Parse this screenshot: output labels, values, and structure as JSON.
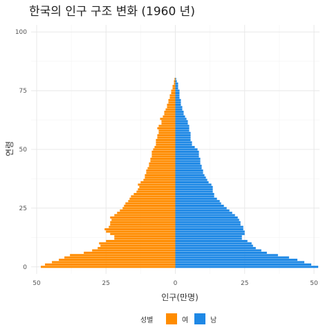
{
  "chart_data": {
    "type": "bar",
    "orientation": "horizontal",
    "title": "한국의 인구 구조 변화 (1960 년)",
    "xlabel": "인구(만명)",
    "ylabel": "연령",
    "xlim": [
      -52,
      52
    ],
    "ylim": [
      -3,
      103
    ],
    "xticks": [
      -50,
      -25,
      0,
      25,
      50
    ],
    "xtick_labels": [
      "50",
      "25",
      "0",
      "25",
      "50"
    ],
    "yticks": [
      0,
      25,
      50,
      75,
      100
    ],
    "ytick_labels": [
      "0",
      "25",
      "50",
      "75",
      "100"
    ],
    "grid": true,
    "legend": {
      "title": "성별",
      "position": "bottom",
      "items": [
        {
          "label": "여",
          "color": "#FF8C00"
        },
        {
          "label": "남",
          "color": "#1E88E5"
        }
      ]
    },
    "ages": [
      0,
      1,
      2,
      3,
      4,
      5,
      6,
      7,
      8,
      9,
      10,
      11,
      12,
      13,
      14,
      15,
      16,
      17,
      18,
      19,
      20,
      21,
      22,
      23,
      24,
      25,
      26,
      27,
      28,
      29,
      30,
      31,
      32,
      33,
      34,
      35,
      36,
      37,
      38,
      39,
      40,
      41,
      42,
      43,
      44,
      45,
      46,
      47,
      48,
      49,
      50,
      51,
      52,
      53,
      54,
      55,
      56,
      57,
      58,
      59,
      60,
      61,
      62,
      63,
      64,
      65,
      66,
      67,
      68,
      69,
      70,
      71,
      72,
      73,
      74,
      75,
      76,
      77,
      78,
      79,
      80
    ],
    "series": [
      {
        "name": "여",
        "color": "#FF8C00",
        "values": [
          48.5,
          47.0,
          44.5,
          42.0,
          40.0,
          38.0,
          33.0,
          30.0,
          28.0,
          27.0,
          27.5,
          25.0,
          22.0,
          22.0,
          23.5,
          25.0,
          25.5,
          24.0,
          23.5,
          23.5,
          23.0,
          23.5,
          22.0,
          21.0,
          20.0,
          19.0,
          18.5,
          18.0,
          17.0,
          16.5,
          16.0,
          15.0,
          14.0,
          13.5,
          13.0,
          13.5,
          12.5,
          11.5,
          11.0,
          11.0,
          10.5,
          10.5,
          10.0,
          9.5,
          9.5,
          9.0,
          9.0,
          8.5,
          8.5,
          8.5,
          8.0,
          7.5,
          7.0,
          7.0,
          7.0,
          6.5,
          6.5,
          6.0,
          6.0,
          6.5,
          6.0,
          5.0,
          5.0,
          5.5,
          4.5,
          4.0,
          4.0,
          3.5,
          3.0,
          3.0,
          2.5,
          2.5,
          2.0,
          2.0,
          1.5,
          1.5,
          1.0,
          1.0,
          0.5,
          0.5,
          0.3
        ]
      },
      {
        "name": "남",
        "color": "#1E88E5",
        "values": [
          51.5,
          49.0,
          46.5,
          44.0,
          41.0,
          37.0,
          33.0,
          31.0,
          29.0,
          28.0,
          27.5,
          26.0,
          24.0,
          24.0,
          25.0,
          25.0,
          24.5,
          24.5,
          23.5,
          23.5,
          23.0,
          22.5,
          21.5,
          20.5,
          19.5,
          18.5,
          17.5,
          16.5,
          16.0,
          15.0,
          14.0,
          14.0,
          13.5,
          13.5,
          13.5,
          13.0,
          12.0,
          11.5,
          11.0,
          10.5,
          10.0,
          10.0,
          9.5,
          9.5,
          9.0,
          9.0,
          9.0,
          8.5,
          8.5,
          8.5,
          8.0,
          7.0,
          6.0,
          6.0,
          5.5,
          5.5,
          5.5,
          5.5,
          5.0,
          5.0,
          5.0,
          4.5,
          4.5,
          4.0,
          3.5,
          3.0,
          3.0,
          2.5,
          2.5,
          2.0,
          2.0,
          2.0,
          1.5,
          1.5,
          1.5,
          1.5,
          1.0,
          1.0,
          1.0,
          0.5,
          0.3
        ]
      }
    ]
  }
}
